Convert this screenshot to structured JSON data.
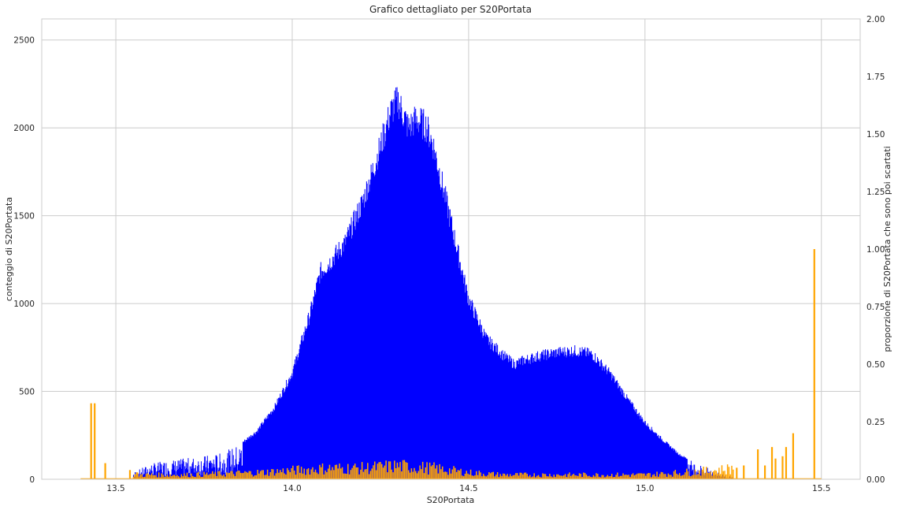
{
  "chart_data": {
    "type": "bar",
    "title": "Grafico dettagliato per S20Portata",
    "xlabel": "S20Portata",
    "ylabel": "conteggio di S20Portata",
    "ylabel_right": "proporzione di S20Portata che sono poi scartati",
    "xlim": [
      13.29,
      15.61
    ],
    "ylim": [
      0,
      2620
    ],
    "ylim_right": [
      0,
      2.0
    ],
    "xticks": [
      "13.5",
      "14.0",
      "14.5",
      "15.0",
      "15.5"
    ],
    "yticks": [
      "0",
      "500",
      "1000",
      "1500",
      "2000",
      "2500"
    ],
    "yticks_right": [
      "0.00",
      "0.25",
      "0.50",
      "0.75",
      "1.00",
      "1.25",
      "1.50",
      "1.75",
      "2.00"
    ],
    "grid": true,
    "colors": {
      "count": "#0000ff",
      "proportion": "#ffa500",
      "grid": "#cccccc",
      "spine": "#cccccc"
    },
    "series": [
      {
        "axis": "left",
        "color": "#0000ff",
        "x": [
          13.55,
          13.6,
          13.65,
          13.7,
          13.75,
          13.8,
          13.85,
          13.9,
          13.95,
          14.0,
          14.05,
          14.08,
          14.1,
          14.15,
          14.2,
          14.25,
          14.28,
          14.3,
          14.33,
          14.35,
          14.38,
          14.4,
          14.45,
          14.5,
          14.55,
          14.6,
          14.63,
          14.65,
          14.7,
          14.75,
          14.8,
          14.85,
          14.9,
          14.95,
          15.0,
          15.05,
          15.1,
          15.15,
          15.2,
          15.25
        ],
        "values": [
          40,
          90,
          110,
          120,
          135,
          150,
          200,
          280,
          420,
          620,
          960,
          1210,
          1250,
          1380,
          1620,
          1940,
          2150,
          2210,
          2050,
          2100,
          2060,
          1950,
          1500,
          1050,
          820,
          720,
          670,
          690,
          720,
          740,
          750,
          730,
          620,
          470,
          330,
          230,
          140,
          90,
          45,
          10
        ]
      },
      {
        "axis": "right",
        "color": "#ffa500",
        "spikes": [
          {
            "x": 13.43,
            "value": 0.33
          },
          {
            "x": 13.44,
            "value": 0.33
          },
          {
            "x": 13.47,
            "value": 0.07
          },
          {
            "x": 13.54,
            "value": 0.04
          },
          {
            "x": 13.56,
            "value": 0.03
          },
          {
            "x": 15.26,
            "value": 0.05
          },
          {
            "x": 15.28,
            "value": 0.06
          },
          {
            "x": 15.32,
            "value": 0.13
          },
          {
            "x": 15.34,
            "value": 0.06
          },
          {
            "x": 15.36,
            "value": 0.14
          },
          {
            "x": 15.37,
            "value": 0.09
          },
          {
            "x": 15.39,
            "value": 0.1
          },
          {
            "x": 15.4,
            "value": 0.14
          },
          {
            "x": 15.42,
            "value": 0.2
          },
          {
            "x": 15.48,
            "value": 1.0
          }
        ],
        "x": [
          13.55,
          13.7,
          13.9,
          14.0,
          14.1,
          14.2,
          14.3,
          14.4,
          14.5,
          14.6,
          14.8,
          15.0,
          15.1,
          15.2,
          15.25
        ],
        "values": [
          0.02,
          0.02,
          0.03,
          0.04,
          0.05,
          0.05,
          0.06,
          0.05,
          0.03,
          0.02,
          0.02,
          0.02,
          0.03,
          0.04,
          0.05
        ]
      }
    ]
  }
}
